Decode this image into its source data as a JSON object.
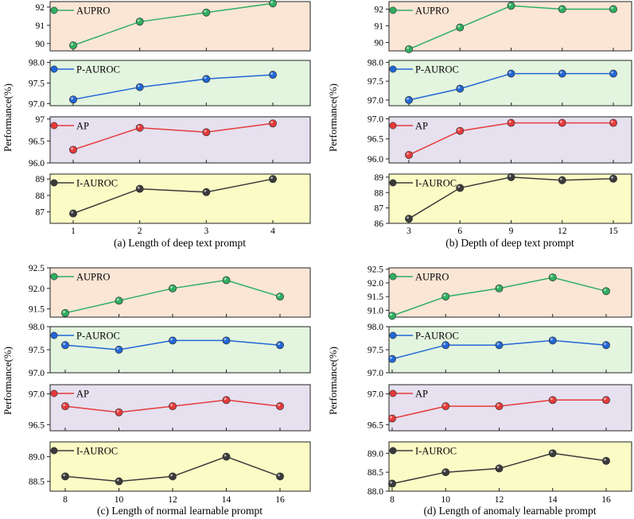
{
  "chart_data": [
    {
      "type": "line",
      "caption": "(a) Length of  deep text prompt",
      "ylabel": "Performance(%)",
      "x": [
        1,
        2,
        3,
        4
      ],
      "series": [
        {
          "name": "AUPRO",
          "color": "#2fae60",
          "bg": "#fbe6d6",
          "values": [
            89.9,
            91.2,
            91.7,
            92.2
          ],
          "ylim": [
            89.6,
            92.3
          ],
          "ticks": [
            90,
            91,
            92
          ],
          "tick_labels": [
            "90",
            "91",
            "92"
          ]
        },
        {
          "name": "P-AUROC",
          "color": "#2167d6",
          "bg": "#e3f4df",
          "values": [
            97.1,
            97.4,
            97.6,
            97.7
          ],
          "ylim": [
            96.95,
            98.05
          ],
          "ticks": [
            97.0,
            97.5,
            98.0
          ],
          "tick_labels": [
            "97.0",
            "97.5",
            "98.0"
          ]
        },
        {
          "name": "AP",
          "color": "#e63a3a",
          "bg": "#e6e0ef",
          "values": [
            96.3,
            96.8,
            96.7,
            96.9
          ],
          "ylim": [
            96.0,
            97.05
          ],
          "ticks": [
            96.0,
            96.5,
            97.0
          ],
          "tick_labels": [
            "96.0",
            "96.5",
            "97"
          ]
        },
        {
          "name": "I-AUROC",
          "color": "#3a3a3a",
          "bg": "#fbfbc6",
          "values": [
            86.9,
            88.4,
            88.2,
            89.0
          ],
          "ylim": [
            86.3,
            89.3
          ],
          "ticks": [
            87,
            88,
            89
          ],
          "tick_labels": [
            "87",
            "88",
            "89"
          ]
        }
      ]
    },
    {
      "type": "line",
      "caption": "(b) Depth of  deep text prompt",
      "ylabel": "Performance(%)",
      "x": [
        3,
        6,
        9,
        12,
        15
      ],
      "series": [
        {
          "name": "AUPRO",
          "color": "#2fae60",
          "bg": "#fbe6d6",
          "values": [
            89.6,
            90.9,
            92.2,
            92.0,
            92.0
          ],
          "ylim": [
            89.5,
            92.45
          ],
          "ticks": [
            90,
            91,
            92
          ],
          "tick_labels": [
            "90",
            "91",
            "92"
          ]
        },
        {
          "name": "P-AUROC",
          "color": "#2167d6",
          "bg": "#e3f4df",
          "values": [
            97.0,
            97.3,
            97.7,
            97.7,
            97.7
          ],
          "ylim": [
            96.85,
            98.05
          ],
          "ticks": [
            97.0,
            97.5,
            98.0
          ],
          "tick_labels": [
            "97.0",
            "97.5",
            "98.0"
          ]
        },
        {
          "name": "AP",
          "color": "#e63a3a",
          "bg": "#e6e0ef",
          "values": [
            96.1,
            96.7,
            96.9,
            96.9,
            96.9
          ],
          "ylim": [
            95.9,
            97.05
          ],
          "ticks": [
            96.0,
            96.5,
            97.0
          ],
          "tick_labels": [
            "96.0",
            "96.5",
            "97.0"
          ]
        },
        {
          "name": "I-AUROC",
          "color": "#3a3a3a",
          "bg": "#fbfbc6",
          "values": [
            86.3,
            88.3,
            89.0,
            88.8,
            88.9
          ],
          "ylim": [
            86.0,
            89.2
          ],
          "ticks": [
            86,
            87,
            88,
            89
          ],
          "tick_labels": [
            "86",
            "87",
            "88",
            "89"
          ]
        }
      ]
    },
    {
      "type": "line",
      "caption": "(c) Length of  normal learnable prompt",
      "ylabel": "Performance(%)",
      "x": [
        8,
        10,
        12,
        14,
        16
      ],
      "series": [
        {
          "name": "AUPRO",
          "color": "#2fae60",
          "bg": "#fbe6d6",
          "values": [
            91.4,
            91.7,
            92.0,
            92.2,
            91.8
          ],
          "ylim": [
            91.3,
            92.5
          ],
          "ticks": [
            91.5,
            92.0,
            92.5
          ],
          "tick_labels": [
            "91.5",
            "92.0",
            "92.5"
          ]
        },
        {
          "name": "P-AUROC",
          "color": "#2167d6",
          "bg": "#e3f4df",
          "values": [
            97.6,
            97.5,
            97.7,
            97.7,
            97.6
          ],
          "ylim": [
            97.0,
            98.0
          ],
          "ticks": [
            97.0,
            97.5,
            98.0
          ],
          "tick_labels": [
            "97.0",
            "97.5",
            "98.0"
          ]
        },
        {
          "name": "AP",
          "color": "#e63a3a",
          "bg": "#e6e0ef",
          "values": [
            96.8,
            96.7,
            96.8,
            96.9,
            96.8
          ],
          "ylim": [
            96.4,
            97.15
          ],
          "ticks": [
            96.5,
            97.0
          ],
          "tick_labels": [
            "96.5",
            "97.0"
          ]
        },
        {
          "name": "I-AUROC",
          "color": "#3a3a3a",
          "bg": "#fbfbc6",
          "values": [
            88.6,
            88.5,
            88.6,
            89.0,
            88.6
          ],
          "ylim": [
            88.3,
            89.3
          ],
          "ticks": [
            88.5,
            89.0
          ],
          "tick_labels": [
            "88.5",
            "89.0"
          ]
        }
      ]
    },
    {
      "type": "line",
      "caption": "(d) Length of  anomaly learnable prompt",
      "ylabel": "Performance(%)",
      "x": [
        8,
        10,
        12,
        14,
        16
      ],
      "series": [
        {
          "name": "AUPRO",
          "color": "#2fae60",
          "bg": "#fbe6d6",
          "values": [
            90.8,
            91.5,
            91.8,
            92.2,
            91.7
          ],
          "ylim": [
            90.75,
            92.55
          ],
          "ticks": [
            91.0,
            91.5,
            92.0,
            92.5
          ],
          "tick_labels": [
            "91.0",
            "91.5",
            "92.0",
            "92.5"
          ]
        },
        {
          "name": "P-AUROC",
          "color": "#2167d6",
          "bg": "#e3f4df",
          "values": [
            97.3,
            97.6,
            97.6,
            97.7,
            97.6
          ],
          "ylim": [
            97.0,
            98.0
          ],
          "ticks": [
            97.0,
            97.5,
            98.0
          ],
          "tick_labels": [
            "97.0",
            "97.5",
            "98.0"
          ]
        },
        {
          "name": "AP",
          "color": "#e63a3a",
          "bg": "#e6e0ef",
          "values": [
            96.6,
            96.8,
            96.8,
            96.9,
            96.9
          ],
          "ylim": [
            96.4,
            97.15
          ],
          "ticks": [
            96.5,
            97.0
          ],
          "tick_labels": [
            "96.5",
            "97.0"
          ]
        },
        {
          "name": "I-AUROC",
          "color": "#3a3a3a",
          "bg": "#fbfbc6",
          "values": [
            88.2,
            88.5,
            88.6,
            89.0,
            88.8
          ],
          "ylim": [
            88.0,
            89.3
          ],
          "ticks": [
            88.0,
            88.5,
            89.0
          ],
          "tick_labels": [
            "88.0",
            "88.5",
            "89.0"
          ]
        }
      ]
    }
  ]
}
